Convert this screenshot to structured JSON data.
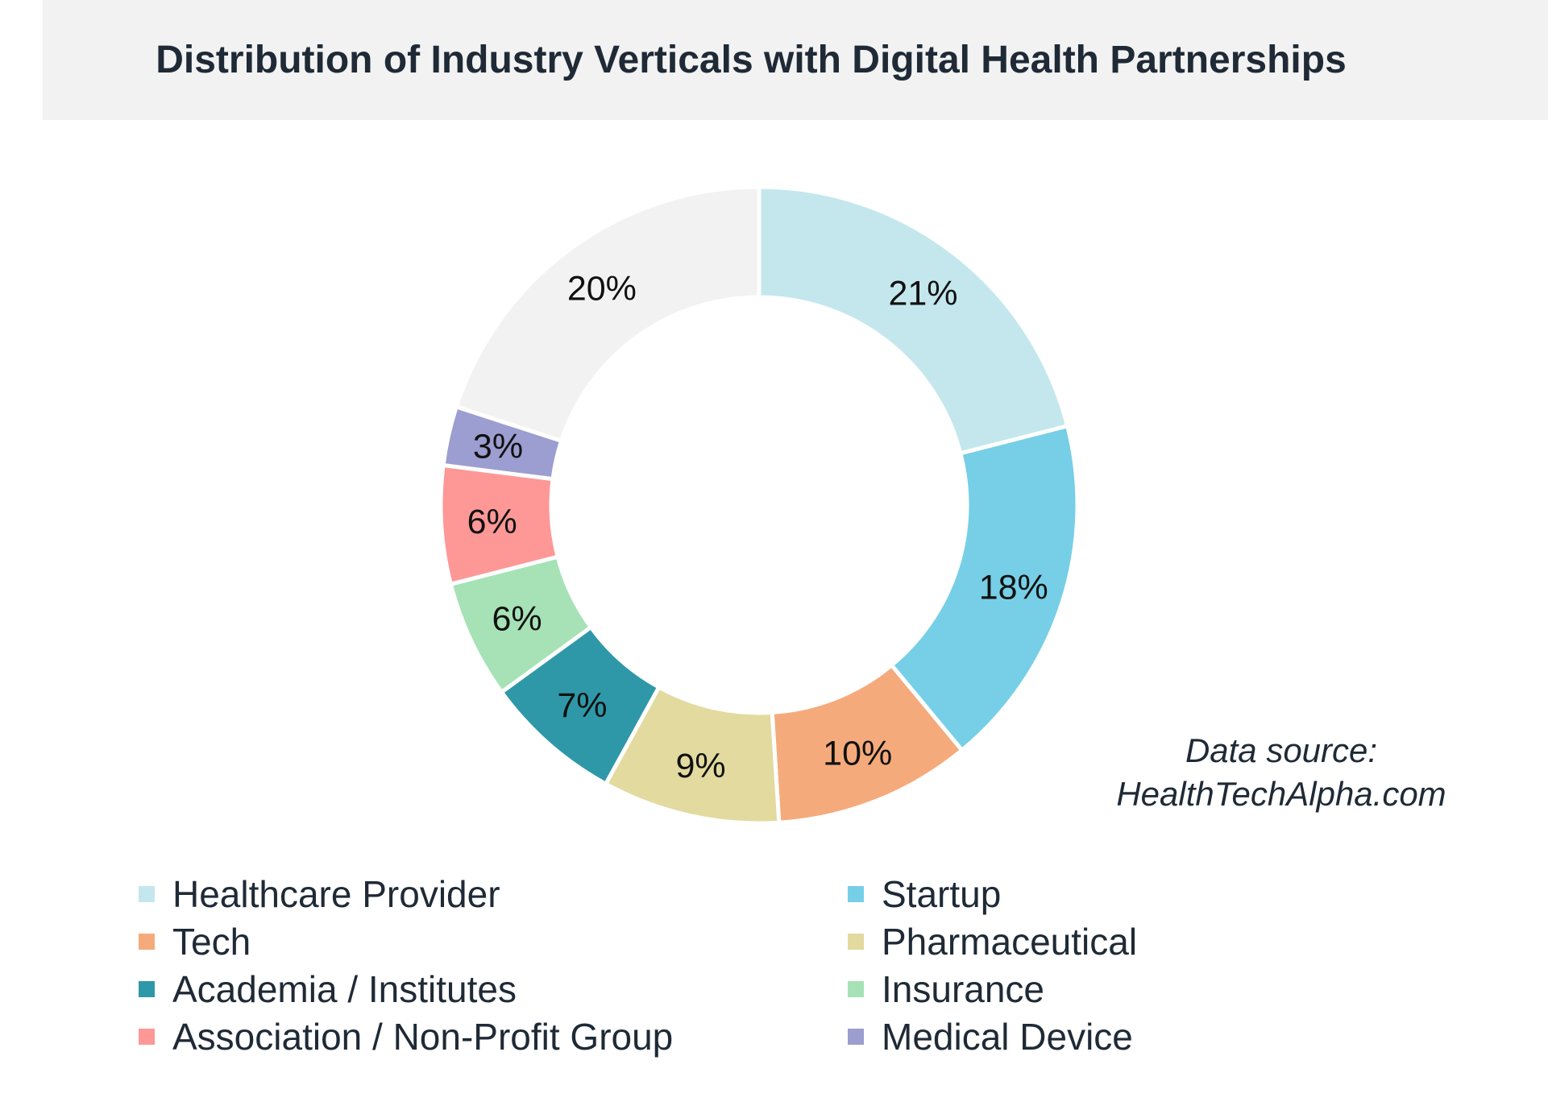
{
  "chart_data": {
    "type": "pie",
    "title": "Distribution of Industry Verticals with Digital Health Partnerships",
    "donut": true,
    "categories": [
      "Healthcare Provider",
      "Startup",
      "Tech",
      "Pharmaceutical",
      "Academia / Institutes",
      "Insurance",
      "Association / Non-Profit Group",
      "Medical Device",
      ""
    ],
    "values": [
      21,
      18,
      10,
      9,
      7,
      6,
      6,
      3,
      20
    ],
    "labels": [
      "21%",
      "18%",
      "10%",
      "9%",
      "7%",
      "6%",
      "6%",
      "3%",
      "20%"
    ],
    "colors": [
      "#c3e7ed",
      "#76cfe6",
      "#f5aa7b",
      "#e2da9f",
      "#2f98a8",
      "#a6e2b6",
      "#fd9897",
      "#9c9dd0",
      "#f2f2f2"
    ],
    "legend": {
      "placement": "bottom",
      "columns": 2,
      "items": [
        {
          "label": "Healthcare Provider",
          "color": "#c3e7ed"
        },
        {
          "label": "Startup",
          "color": "#76cfe6"
        },
        {
          "label": "Tech",
          "color": "#f5aa7b"
        },
        {
          "label": "Pharmaceutical",
          "color": "#e2da9f"
        },
        {
          "label": "Academia / Institutes",
          "color": "#2f98a8"
        },
        {
          "label": "Insurance",
          "color": "#a6e2b6"
        },
        {
          "label": "Association / Non-Profit Group",
          "color": "#fd9897"
        },
        {
          "label": "Medical Device",
          "color": "#9c9dd0"
        }
      ]
    },
    "annotation": {
      "line1": "Data source:",
      "line2": "HealthTechAlpha.com"
    }
  }
}
